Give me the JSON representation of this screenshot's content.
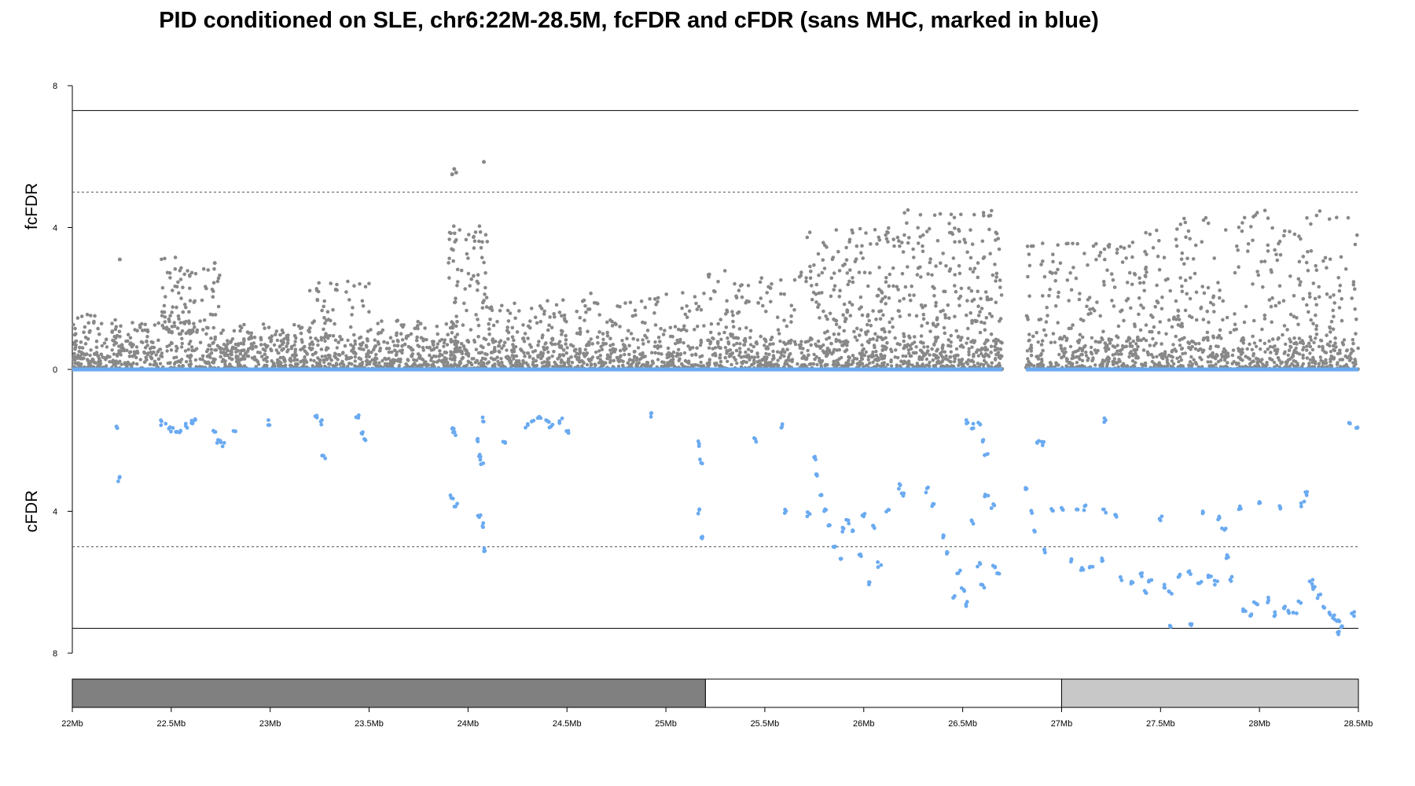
{
  "chart_data": {
    "type": "scatter",
    "title": "PID conditioned on SLE, chr6:22M-28.5M, fcFDR and cFDR (sans MHC, marked in blue)",
    "top_panel": {
      "ylabel": "fcFDR",
      "ylim": [
        0,
        8
      ],
      "yticks": [
        "8",
        "4",
        "0"
      ],
      "significance_line": 7.3,
      "suggestive_line": 5
    },
    "bottom_panel": {
      "ylabel": "cFDR",
      "ylim": [
        0,
        8
      ],
      "yticks": [
        "4",
        "8"
      ],
      "significance_line": 7.3,
      "suggestive_line": 5
    },
    "x_axis": {
      "range_mb": [
        22,
        28.5
      ],
      "ticks": [
        {
          "mb": 22.0,
          "label": "22Mb"
        },
        {
          "mb": 22.5,
          "label": "22.5Mb"
        },
        {
          "mb": 23.0,
          "label": "23Mb"
        },
        {
          "mb": 23.5,
          "label": "23.5Mb"
        },
        {
          "mb": 24.0,
          "label": "24Mb"
        },
        {
          "mb": 24.5,
          "label": "24.5Mb"
        },
        {
          "mb": 25.0,
          "label": "25Mb"
        },
        {
          "mb": 25.5,
          "label": "25.5Mb"
        },
        {
          "mb": 26.0,
          "label": "26Mb"
        },
        {
          "mb": 26.5,
          "label": "26.5Mb"
        },
        {
          "mb": 27.0,
          "label": "27Mb"
        },
        {
          "mb": 27.5,
          "label": "27.5Mb"
        },
        {
          "mb": 28.0,
          "label": "28Mb"
        },
        {
          "mb": 28.5,
          "label": "28.5Mb"
        }
      ]
    },
    "gap_mb": [
      26.7,
      26.82
    ],
    "region_bars": [
      {
        "start_mb": 22.0,
        "end_mb": 25.2,
        "color": "#808080"
      },
      {
        "start_mb": 25.2,
        "end_mb": 27.0,
        "color": "#ffffff"
      },
      {
        "start_mb": 27.0,
        "end_mb": 28.5,
        "color": "#c8c8c8"
      }
    ],
    "colors": {
      "fcFDR_points": "#888888",
      "cFDR_points": "#6aaaf0",
      "baseline": "#6aaaf0"
    },
    "fcFDR_clusters": [
      {
        "x": [
          22.0,
          22.15
        ],
        "y": [
          0,
          1.6
        ],
        "n": 80
      },
      {
        "x": [
          22.2,
          22.45
        ],
        "y": [
          0,
          1.4
        ],
        "n": 90
      },
      {
        "x": [
          22.45,
          22.6
        ],
        "y": [
          1.0,
          3.2
        ],
        "n": 70
      },
      {
        "x": [
          22.6,
          22.75
        ],
        "y": [
          0,
          3.0
        ],
        "n": 60
      },
      {
        "x": [
          22.75,
          23.2
        ],
        "y": [
          0,
          1.3
        ],
        "n": 160
      },
      {
        "x": [
          23.2,
          23.5
        ],
        "y": [
          0,
          2.5
        ],
        "n": 110
      },
      {
        "x": [
          23.5,
          23.95
        ],
        "y": [
          0,
          1.4
        ],
        "n": 150
      },
      {
        "x": [
          23.9,
          24.1
        ],
        "y": [
          0,
          4.1
        ],
        "n": 120
      },
      {
        "x": [
          24.1,
          24.5
        ],
        "y": [
          0,
          2.0
        ],
        "n": 160
      },
      {
        "x": [
          24.5,
          25.2
        ],
        "y": [
          0,
          2.2
        ],
        "n": 200
      },
      {
        "x": [
          25.2,
          25.7
        ],
        "y": [
          0,
          2.8
        ],
        "n": 150
      },
      {
        "x": [
          25.7,
          26.2
        ],
        "y": [
          0,
          4.0
        ],
        "n": 260
      },
      {
        "x": [
          26.2,
          26.7
        ],
        "y": [
          0,
          4.5
        ],
        "n": 280
      },
      {
        "x": [
          26.82,
          27.4
        ],
        "y": [
          0,
          3.6
        ],
        "n": 240
      },
      {
        "x": [
          27.4,
          28.5
        ],
        "y": [
          0,
          4.5
        ],
        "n": 380
      }
    ],
    "fcFDR_outliers": [
      [
        23.92,
        5.5
      ],
      [
        23.93,
        5.65
      ],
      [
        23.94,
        5.55
      ],
      [
        24.08,
        5.85
      ],
      [
        22.24,
        3.1
      ],
      [
        22.72,
        3.0
      ]
    ],
    "cFDR_points": [
      [
        22.22,
        1.6
      ],
      [
        22.24,
        3.1
      ],
      [
        22.45,
        1.5
      ],
      [
        22.48,
        1.6
      ],
      [
        22.5,
        1.7
      ],
      [
        22.52,
        1.75
      ],
      [
        22.55,
        1.8
      ],
      [
        22.58,
        1.6
      ],
      [
        22.6,
        1.5
      ],
      [
        22.62,
        1.4
      ],
      [
        22.72,
        1.8
      ],
      [
        22.74,
        2.0
      ],
      [
        22.76,
        2.1
      ],
      [
        22.82,
        1.75
      ],
      [
        23.0,
        1.5
      ],
      [
        23.23,
        1.35
      ],
      [
        23.26,
        1.5
      ],
      [
        23.27,
        2.45
      ],
      [
        23.44,
        1.3
      ],
      [
        23.46,
        1.8
      ],
      [
        23.48,
        2.0
      ],
      [
        23.92,
        1.6
      ],
      [
        23.93,
        1.8
      ],
      [
        23.92,
        3.6
      ],
      [
        23.94,
        3.8
      ],
      [
        24.05,
        2.0
      ],
      [
        24.06,
        2.4
      ],
      [
        24.07,
        2.6
      ],
      [
        24.06,
        4.1
      ],
      [
        24.08,
        4.4
      ],
      [
        24.08,
        5.1
      ],
      [
        24.18,
        2.1
      ],
      [
        24.08,
        1.4
      ],
      [
        24.3,
        1.6
      ],
      [
        24.33,
        1.45
      ],
      [
        24.36,
        1.4
      ],
      [
        24.4,
        1.5
      ],
      [
        24.42,
        1.6
      ],
      [
        24.47,
        1.45
      ],
      [
        24.5,
        1.8
      ],
      [
        24.92,
        1.3
      ],
      [
        25.17,
        2.1
      ],
      [
        25.18,
        2.6
      ],
      [
        25.17,
        4.0
      ],
      [
        25.18,
        4.7
      ],
      [
        25.45,
        2.0
      ],
      [
        25.6,
        4.0
      ],
      [
        25.58,
        1.6
      ],
      [
        25.72,
        4.1
      ],
      [
        25.75,
        2.5
      ],
      [
        25.76,
        3.0
      ],
      [
        25.78,
        3.6
      ],
      [
        25.8,
        4.0
      ],
      [
        25.82,
        4.4
      ],
      [
        25.85,
        5.0
      ],
      [
        25.88,
        5.3
      ],
      [
        25.9,
        4.5
      ],
      [
        25.92,
        4.3
      ],
      [
        25.95,
        4.6
      ],
      [
        25.98,
        5.2
      ],
      [
        26.0,
        4.1
      ],
      [
        26.02,
        6.0
      ],
      [
        26.05,
        4.4
      ],
      [
        26.08,
        5.5
      ],
      [
        26.12,
        4.0
      ],
      [
        26.18,
        3.3
      ],
      [
        26.2,
        3.5
      ],
      [
        26.32,
        3.4
      ],
      [
        26.35,
        3.8
      ],
      [
        26.4,
        4.7
      ],
      [
        26.42,
        5.2
      ],
      [
        26.45,
        6.4
      ],
      [
        26.48,
        5.7
      ],
      [
        26.5,
        6.2
      ],
      [
        26.52,
        6.6
      ],
      [
        26.55,
        4.3
      ],
      [
        26.58,
        5.5
      ],
      [
        26.6,
        6.1
      ],
      [
        26.52,
        1.5
      ],
      [
        26.55,
        1.6
      ],
      [
        26.58,
        1.55
      ],
      [
        26.6,
        2.0
      ],
      [
        26.62,
        2.4
      ],
      [
        26.62,
        3.6
      ],
      [
        26.65,
        3.85
      ],
      [
        26.66,
        5.6
      ],
      [
        26.68,
        5.8
      ],
      [
        26.82,
        3.4
      ],
      [
        26.85,
        4.0
      ],
      [
        26.86,
        4.6
      ],
      [
        26.88,
        2.0
      ],
      [
        26.9,
        2.1
      ],
      [
        26.92,
        5.1
      ],
      [
        26.95,
        4.0
      ],
      [
        27.0,
        3.9
      ],
      [
        27.05,
        5.4
      ],
      [
        27.08,
        4.0
      ],
      [
        27.12,
        3.9
      ],
      [
        27.1,
        5.6
      ],
      [
        27.15,
        5.6
      ],
      [
        27.2,
        5.4
      ],
      [
        27.22,
        4.0
      ],
      [
        27.28,
        4.1
      ],
      [
        27.3,
        5.9
      ],
      [
        27.36,
        6.0
      ],
      [
        27.4,
        5.8
      ],
      [
        27.42,
        6.3
      ],
      [
        27.45,
        6.0
      ],
      [
        27.5,
        4.2
      ],
      [
        27.52,
        6.1
      ],
      [
        27.55,
        6.3
      ],
      [
        27.6,
        5.8
      ],
      [
        27.65,
        5.7
      ],
      [
        27.7,
        6.0
      ],
      [
        27.72,
        4.0
      ],
      [
        27.75,
        5.8
      ],
      [
        27.78,
        6.0
      ],
      [
        27.8,
        4.2
      ],
      [
        27.82,
        4.5
      ],
      [
        27.84,
        5.3
      ],
      [
        27.86,
        5.9
      ],
      [
        27.9,
        3.9
      ],
      [
        27.92,
        6.8
      ],
      [
        27.95,
        6.9
      ],
      [
        27.98,
        6.6
      ],
      [
        28.0,
        3.8
      ],
      [
        28.05,
        6.5
      ],
      [
        28.08,
        6.9
      ],
      [
        28.1,
        3.9
      ],
      [
        28.12,
        6.7
      ],
      [
        28.15,
        6.8
      ],
      [
        28.18,
        6.9
      ],
      [
        28.2,
        6.6
      ],
      [
        28.22,
        3.8
      ],
      [
        28.24,
        3.5
      ],
      [
        28.26,
        6.0
      ],
      [
        28.28,
        6.2
      ],
      [
        28.3,
        6.4
      ],
      [
        28.32,
        6.7
      ],
      [
        28.35,
        6.9
      ],
      [
        28.38,
        7.0
      ],
      [
        28.4,
        7.1
      ],
      [
        28.42,
        7.3
      ],
      [
        28.45,
        1.5
      ],
      [
        28.47,
        6.9
      ],
      [
        28.49,
        1.6
      ],
      [
        27.55,
        7.3
      ],
      [
        27.65,
        7.2
      ],
      [
        28.4,
        7.4
      ],
      [
        27.22,
        1.45
      ]
    ]
  }
}
